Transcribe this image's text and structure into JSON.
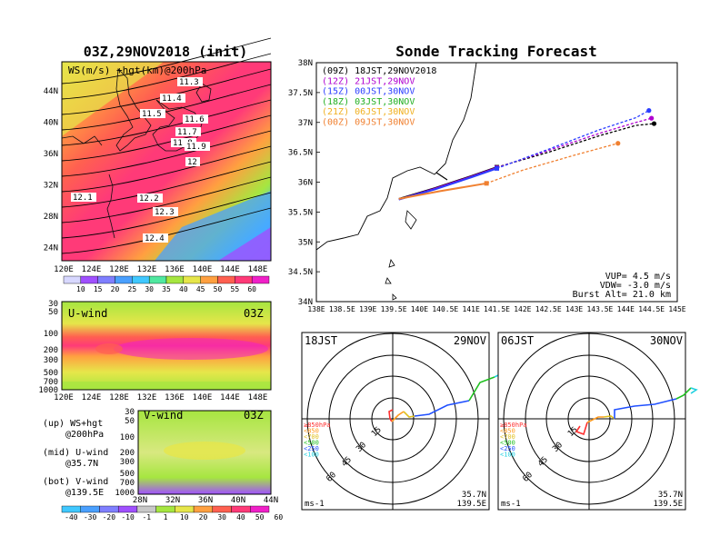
{
  "ws_panel": {
    "title": "03Z,29NOV2018 (init)",
    "label": "WS(m/s) +hgt(km)@200hPa",
    "lon_ticks": [
      "120E",
      "124E",
      "128E",
      "132E",
      "136E",
      "140E",
      "144E",
      "148E"
    ],
    "lat_ticks": [
      "44N",
      "40N",
      "36N",
      "32N",
      "28N",
      "24N"
    ],
    "contour_labels": [
      "11.3",
      "11.4",
      "11.5",
      "11.6",
      "11.7",
      "11.8",
      "11.9",
      "12",
      "12.1",
      "12.2",
      "12.3",
      "12.4"
    ],
    "colorbar_ticks": [
      "10",
      "15",
      "20",
      "25",
      "30",
      "35",
      "40",
      "45",
      "50",
      "55",
      "60"
    ],
    "colors": [
      "#d8d8ff",
      "#a050ff",
      "#7f7fff",
      "#4aa0ff",
      "#40c8ff",
      "#50e8a0",
      "#a6e640",
      "#e6e64a",
      "#ffa040",
      "#ff6050",
      "#ff3a78",
      "#f020c8"
    ]
  },
  "u_panel": {
    "label": "U-wind",
    "time": "03Z",
    "pressure_ticks": [
      "30",
      "50",
      "100",
      "200",
      "300",
      "500",
      "700",
      "1000"
    ],
    "lon_ticks": [
      "120E",
      "124E",
      "128E",
      "132E",
      "136E",
      "140E",
      "144E",
      "148E"
    ]
  },
  "v_panel": {
    "label": "V-wind",
    "time": "03Z",
    "pressure_ticks": [
      "30",
      "50",
      "100",
      "200",
      "300",
      "500",
      "700",
      "1000"
    ],
    "lat_ticks": [
      "28N",
      "32N",
      "36N",
      "40N",
      "44N"
    ],
    "colorbar_ticks": [
      "-40",
      "-30",
      "-20",
      "-10",
      "-1",
      "1",
      "10",
      "20",
      "30",
      "40",
      "50",
      "60"
    ],
    "colors": [
      "#40c8ff",
      "#4aa0ff",
      "#7f7fff",
      "#a050ff",
      "#c8c8c8",
      "#a6e640",
      "#e6e64a",
      "#ffa040",
      "#ff6050",
      "#ff3a78",
      "#f020c8"
    ]
  },
  "legend_notes": {
    "up_1": "(up) WS+hgt",
    "up_2": "@200hPa",
    "mid_1": "(mid) U-wind",
    "mid_2": "@35.7N",
    "bot_1": "(bot) V-wind",
    "bot_2": "@139.5E"
  },
  "track": {
    "title": "Sonde Tracking Forecast",
    "lat_ticks": [
      "38N",
      "37.5N",
      "37N",
      "36.5N",
      "36N",
      "35.5N",
      "35N",
      "34.5N",
      "34N"
    ],
    "lon_ticks": [
      "138E",
      "138.5E",
      "139E",
      "139.5E",
      "140E",
      "140.5E",
      "141E",
      "141.5E",
      "142E",
      "142.5E",
      "143E",
      "143.5E",
      "144E",
      "144.5E",
      "145E"
    ],
    "vup": "VUP= 4.5 m/s",
    "vdw": "VDW= -3.0 m/s",
    "burst": "Burst Alt= 21.0 km",
    "runs": [
      {
        "label": "(09Z) 18JST,29NOV2018",
        "color": "#000000"
      },
      {
        "label": "(12Z) 21JST,29NOV",
        "color": "#b000d0"
      },
      {
        "label": "(15Z) 00JST,30NOV",
        "color": "#2a3cff"
      },
      {
        "label": "(18Z) 03JST,30NOV",
        "color": "#22b022"
      },
      {
        "label": "(21Z) 06JST,30NOV",
        "color": "#f0b020"
      },
      {
        "label": "(00Z) 09JST,30NOV",
        "color": "#f08030"
      }
    ]
  },
  "hodo_left": {
    "time": "18JST",
    "date": "29NOV",
    "unit": "ms-1",
    "lat": "35.7N",
    "lon": "139.5E",
    "ring_labels": [
      "15",
      "30",
      "45",
      "60"
    ]
  },
  "hodo_right": {
    "time": "06JST",
    "date": "30NOV",
    "unit": "ms-1",
    "lat": "35.7N",
    "lon": "139.5E",
    "ring_labels": [
      "15",
      "30",
      "45",
      "60"
    ]
  },
  "hodo_legend": {
    "levels": [
      {
        "label": "≥850hPa",
        "color": "#ff3030"
      },
      {
        "label": "<850",
        "color": "#ff9a20"
      },
      {
        "label": "<700",
        "color": "#e0c020"
      },
      {
        "label": "<500",
        "color": "#20c020"
      },
      {
        "label": "<250",
        "color": "#2050ff"
      },
      {
        "label": "<100",
        "color": "#20d0e0"
      }
    ]
  },
  "chart_data": [
    {
      "type": "heatmap",
      "title": "03Z,29NOV2018 (init)",
      "subtitle": "WS(m/s) +hgt(km)@200hPa",
      "xlim": [
        "120E",
        "150E"
      ],
      "ylim": [
        "22N",
        "47N"
      ],
      "colorbar_values": [
        10,
        15,
        20,
        25,
        30,
        35,
        40,
        45,
        50,
        55,
        60
      ],
      "contour_values_km": [
        11.3,
        11.4,
        11.5,
        11.6,
        11.7,
        11.8,
        11.9,
        12,
        12.1,
        12.2,
        12.3,
        12.4
      ]
    },
    {
      "type": "line",
      "title": "Sonde Tracking Forecast",
      "xlim": [
        138,
        145
      ],
      "ylim": [
        34,
        38
      ],
      "series": [
        {
          "name": "(09Z) 18JST,29NOV2018",
          "x": [
            139.6,
            140.3,
            141.0,
            141.5,
            142.5,
            143.5,
            144.2,
            144.55
          ],
          "y": [
            35.72,
            35.9,
            36.1,
            36.25,
            36.5,
            36.78,
            36.95,
            36.98
          ]
        },
        {
          "name": "(12Z) 21JST,29NOV",
          "x": [
            139.6,
            140.3,
            141.0,
            141.5,
            142.5,
            143.5,
            144.2,
            144.5
          ],
          "y": [
            35.71,
            35.89,
            36.09,
            36.24,
            36.53,
            36.82,
            37.0,
            37.07
          ]
        },
        {
          "name": "(15Z) 00JST,30NOV",
          "x": [
            139.6,
            140.3,
            141.0,
            141.5,
            142.5,
            143.5,
            144.2,
            144.45
          ],
          "y": [
            35.71,
            35.88,
            36.08,
            36.23,
            36.55,
            36.88,
            37.08,
            37.2
          ]
        },
        {
          "name": "(18Z) 03JST,30NOV",
          "x": [],
          "y": []
        },
        {
          "name": "(21Z) 06JST,30NOV",
          "x": [],
          "y": []
        },
        {
          "name": "(00Z) 09JST,30NOV",
          "x": [
            139.6,
            140.4,
            141.3,
            142.0,
            143.0,
            143.85
          ],
          "y": [
            35.72,
            35.85,
            35.98,
            36.2,
            36.45,
            36.65
          ]
        }
      ],
      "vup_m_s": 4.5,
      "vdw_m_s": -3.0,
      "burst_alt_km": 21.0
    }
  ]
}
